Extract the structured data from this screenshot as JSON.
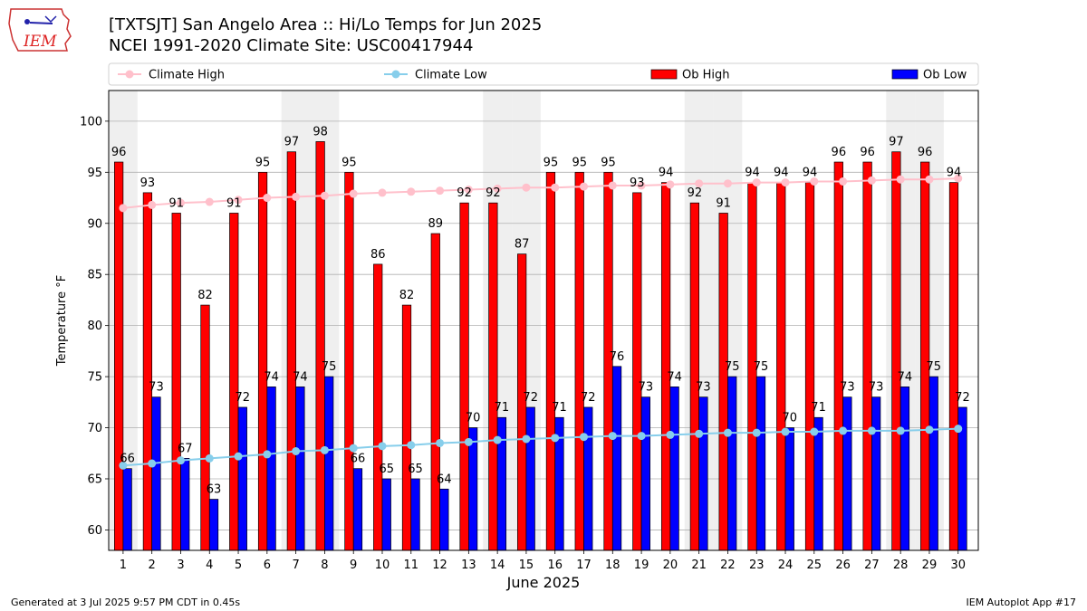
{
  "header": {
    "title_line1": "[TXTSJT] San Angelo Area :: Hi/Lo Temps for Jun 2025",
    "title_line2": "NCEI 1991-2020 Climate Site: USC00417944",
    "logo_text": "IEM"
  },
  "footer": {
    "left": "Generated at 3 Jul 2025 9:57 PM CDT in 0.45s",
    "right": "IEM Autoplot App #17"
  },
  "colors": {
    "ob_high": "#ff0000",
    "ob_low": "#0000ff",
    "climate_high": "#ffc0cb",
    "climate_low": "#87ceeb",
    "weekend_band": "#efefef"
  },
  "chart_data": {
    "type": "bar",
    "xlabel": "June 2025",
    "ylabel": "Temperature °F",
    "ylim": [
      58,
      103
    ],
    "yticks": [
      60,
      65,
      70,
      75,
      80,
      85,
      90,
      95,
      100
    ],
    "grid": true,
    "legend_position": "top",
    "categories": [
      1,
      2,
      3,
      4,
      5,
      6,
      7,
      8,
      9,
      10,
      11,
      12,
      13,
      14,
      15,
      16,
      17,
      18,
      19,
      20,
      21,
      22,
      23,
      24,
      25,
      26,
      27,
      28,
      29,
      30
    ],
    "weekend_days": [
      1,
      7,
      8,
      14,
      15,
      21,
      22,
      28,
      29
    ],
    "series": [
      {
        "name": "Ob High",
        "kind": "bar",
        "values": [
          96,
          93,
          91,
          82,
          91,
          95,
          97,
          98,
          95,
          86,
          82,
          89,
          92,
          92,
          87,
          95,
          95,
          95,
          93,
          94,
          92,
          91,
          94,
          94,
          94,
          96,
          96,
          97,
          96,
          94
        ]
      },
      {
        "name": "Ob Low",
        "kind": "bar",
        "values": [
          66,
          73,
          67,
          63,
          72,
          74,
          74,
          75,
          66,
          65,
          65,
          64,
          70,
          71,
          72,
          71,
          72,
          76,
          73,
          74,
          73,
          75,
          75,
          70,
          71,
          73,
          73,
          74,
          75,
          72
        ]
      },
      {
        "name": "Climate High",
        "kind": "line",
        "values": [
          91.5,
          91.8,
          92.0,
          92.1,
          92.3,
          92.5,
          92.6,
          92.7,
          92.9,
          93.0,
          93.1,
          93.2,
          93.3,
          93.4,
          93.5,
          93.5,
          93.6,
          93.7,
          93.7,
          93.8,
          93.9,
          93.9,
          94.0,
          94.0,
          94.1,
          94.1,
          94.2,
          94.3,
          94.3,
          94.4
        ]
      },
      {
        "name": "Climate Low",
        "kind": "line",
        "values": [
          66.3,
          66.5,
          66.8,
          67.0,
          67.2,
          67.4,
          67.7,
          67.8,
          68.0,
          68.2,
          68.3,
          68.5,
          68.6,
          68.8,
          68.9,
          69.0,
          69.1,
          69.2,
          69.2,
          69.3,
          69.4,
          69.5,
          69.5,
          69.6,
          69.6,
          69.7,
          69.7,
          69.7,
          69.8,
          69.9
        ]
      }
    ]
  }
}
